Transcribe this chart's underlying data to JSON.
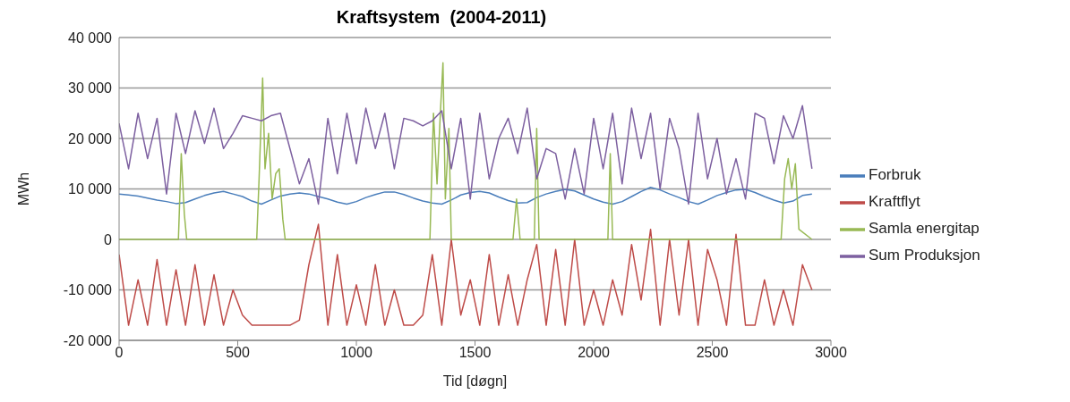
{
  "chart_data": {
    "type": "line",
    "title": "Kraftsystem  (2004-2011)",
    "xlabel": "Tid [døgn]",
    "ylabel": "MWh",
    "x": [
      0,
      40,
      80,
      120,
      160,
      200,
      240,
      280,
      320,
      360,
      400,
      440,
      480,
      520,
      560,
      600,
      640,
      680,
      720,
      760,
      800,
      840,
      880,
      920,
      960,
      1000,
      1040,
      1080,
      1120,
      1160,
      1200,
      1240,
      1280,
      1320,
      1360,
      1400,
      1440,
      1480,
      1520,
      1560,
      1600,
      1640,
      1680,
      1720,
      1760,
      1800,
      1840,
      1880,
      1920,
      1960,
      2000,
      2040,
      2080,
      2120,
      2160,
      2200,
      2240,
      2280,
      2320,
      2360,
      2400,
      2440,
      2480,
      2520,
      2560,
      2600,
      2640,
      2680,
      2720,
      2760,
      2800,
      2840,
      2880,
      2920
    ],
    "series": [
      {
        "name": "Forbruk",
        "color": "#4a7ebb",
        "values": [
          9000,
          8800,
          8600,
          8200,
          7800,
          7500,
          7100,
          7300,
          8000,
          8700,
          9200,
          9500,
          9000,
          8500,
          7600,
          7000,
          7800,
          8600,
          9000,
          9200,
          9000,
          8500,
          8000,
          7400,
          7000,
          7500,
          8300,
          8900,
          9400,
          9400,
          8900,
          8200,
          7600,
          7200,
          7000,
          7800,
          8800,
          9300,
          9500,
          9200,
          8400,
          7700,
          7200,
          7300,
          8300,
          9000,
          9500,
          9900,
          9600,
          8800,
          8000,
          7400,
          7000,
          7500,
          8500,
          9500,
          10300,
          9800,
          9000,
          8300,
          7500,
          7000,
          7800,
          8700,
          9300,
          9800,
          9900,
          9300,
          8500,
          7800,
          7200,
          7600,
          8700,
          9000
        ]
      },
      {
        "name": "Kraftflyt",
        "color": "#be4b48",
        "values": [
          -3000,
          -17000,
          -8000,
          -17000,
          -4000,
          -17000,
          -6000,
          -17000,
          -5000,
          -17000,
          -7000,
          -17000,
          -10000,
          -15000,
          -17000,
          -17000,
          -17000,
          -17000,
          -17000,
          -16000,
          -5000,
          3000,
          -17000,
          -3000,
          -17000,
          -9000,
          -17000,
          -5000,
          -17000,
          -10000,
          -17000,
          -17000,
          -15000,
          -3000,
          -17000,
          0,
          -15000,
          -8000,
          -17000,
          -3000,
          -17000,
          -7000,
          -17000,
          -8000,
          -1000,
          -17000,
          -2000,
          -17000,
          0,
          -17000,
          -10000,
          -17000,
          -8000,
          -15000,
          -1000,
          -12000,
          2000,
          -17000,
          0,
          -15000,
          0,
          -17000,
          -2000,
          -8000,
          -17000,
          1000,
          -17000,
          -17000,
          -8000,
          -17000,
          -10000,
          -17000,
          -5000,
          -10000
        ]
      },
      {
        "name": "Samla energitap",
        "color": "#98b954",
        "x": [
          0,
          250,
          262,
          275,
          285,
          580,
          590,
          605,
          615,
          630,
          645,
          660,
          675,
          690,
          700,
          1310,
          1325,
          1340,
          1355,
          1365,
          1375,
          1390,
          1400,
          1660,
          1675,
          1690,
          1750,
          1760,
          1770,
          2060,
          2070,
          2080,
          2790,
          2805,
          2820,
          2835,
          2850,
          2865,
          2920
        ],
        "values": [
          0,
          0,
          17000,
          5000,
          0,
          0,
          12000,
          32000,
          14000,
          21000,
          8000,
          13000,
          14000,
          4000,
          0,
          0,
          25000,
          11000,
          26000,
          35000,
          8000,
          22000,
          0,
          0,
          8000,
          0,
          0,
          22000,
          0,
          0,
          17000,
          0,
          0,
          12000,
          16000,
          10000,
          15000,
          2000,
          0
        ]
      },
      {
        "name": "Sum Produksjon",
        "color": "#7d60a0",
        "values": [
          23000,
          14000,
          25000,
          16000,
          24000,
          9000,
          25000,
          17000,
          25500,
          19000,
          26000,
          18000,
          21000,
          24500,
          24000,
          23500,
          24500,
          25000,
          18000,
          11000,
          16000,
          7000,
          24000,
          13000,
          25000,
          15000,
          26000,
          18000,
          25000,
          14000,
          24000,
          23500,
          22500,
          23500,
          25500,
          14000,
          24000,
          8000,
          25000,
          12000,
          20000,
          24000,
          17000,
          26000,
          12000,
          18000,
          17000,
          8000,
          18000,
          9000,
          24000,
          14000,
          25000,
          11000,
          26000,
          16000,
          25000,
          10000,
          24000,
          18000,
          7000,
          25000,
          12000,
          20000,
          9000,
          16000,
          8000,
          25000,
          24000,
          15000,
          24500,
          20000,
          26500,
          14000
        ]
      }
    ],
    "xlim": [
      0,
      3000
    ],
    "xticks": [
      0,
      500,
      1000,
      1500,
      2000,
      2500,
      3000
    ],
    "ylim": [
      -20000,
      40000
    ],
    "yticks": [
      {
        "value": -20000,
        "label": "-20 000"
      },
      {
        "value": -10000,
        "label": "-10 000"
      },
      {
        "value": 0,
        "label": "0"
      },
      {
        "value": 10000,
        "label": "10 000"
      },
      {
        "value": 20000,
        "label": "20 000"
      },
      {
        "value": 30000,
        "label": "30 000"
      },
      {
        "value": 40000,
        "label": "40 000"
      }
    ],
    "grid": "y",
    "legend": "right",
    "marker": "none",
    "line_style": "solid"
  }
}
